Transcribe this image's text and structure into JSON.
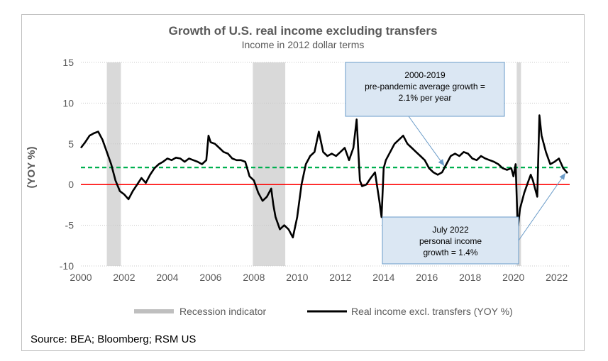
{
  "chart_data": {
    "type": "line",
    "title": "Growth of U.S. real income excluding transfers",
    "subtitle": "Income in 2012 dollar terms",
    "ylabel": "(YOY %)",
    "xlabel": "",
    "xlim": [
      2000,
      2022.6
    ],
    "ylim": [
      -10,
      15
    ],
    "xticks": [
      "2000",
      "2002",
      "2004",
      "2006",
      "2008",
      "2010",
      "2012",
      "2014",
      "2016",
      "2018",
      "2020",
      "2022"
    ],
    "yticks": [
      "15",
      "10",
      "5",
      "0",
      "-5",
      "-10"
    ],
    "grid": "horizontal dotted",
    "legend": "bottom",
    "recessions": [
      {
        "start": 2001.2,
        "end": 2001.85
      },
      {
        "start": 2007.95,
        "end": 2009.45
      },
      {
        "start": 2020.15,
        "end": 2020.35
      }
    ],
    "series": [
      {
        "name": "Real income excl. transfers (YOY %)",
        "color": "#000000",
        "x": [
          2000.0,
          2000.2,
          2000.4,
          2000.6,
          2000.8,
          2001.0,
          2001.2,
          2001.4,
          2001.6,
          2001.8,
          2002.0,
          2002.2,
          2002.4,
          2002.6,
          2002.8,
          2003.0,
          2003.2,
          2003.4,
          2003.6,
          2003.8,
          2004.0,
          2004.2,
          2004.4,
          2004.6,
          2004.8,
          2005.0,
          2005.2,
          2005.4,
          2005.6,
          2005.8,
          2005.9,
          2006.0,
          2006.2,
          2006.4,
          2006.6,
          2006.8,
          2007.0,
          2007.2,
          2007.4,
          2007.6,
          2007.8,
          2008.0,
          2008.2,
          2008.4,
          2008.6,
          2008.8,
          2008.9,
          2009.0,
          2009.2,
          2009.4,
          2009.6,
          2009.8,
          2010.0,
          2010.2,
          2010.4,
          2010.6,
          2010.8,
          2011.0,
          2011.2,
          2011.4,
          2011.6,
          2011.8,
          2012.0,
          2012.2,
          2012.4,
          2012.6,
          2012.75,
          2012.9,
          2013.0,
          2013.2,
          2013.4,
          2013.6,
          2013.8,
          2013.9,
          2014.0,
          2014.1,
          2014.3,
          2014.5,
          2014.7,
          2014.9,
          2015.1,
          2015.3,
          2015.5,
          2015.7,
          2015.9,
          2016.1,
          2016.3,
          2016.5,
          2016.7,
          2016.9,
          2017.1,
          2017.3,
          2017.5,
          2017.7,
          2017.9,
          2018.1,
          2018.3,
          2018.5,
          2018.7,
          2018.9,
          2019.1,
          2019.3,
          2019.5,
          2019.7,
          2019.9,
          2020.0,
          2020.1,
          2020.2,
          2020.3,
          2020.5,
          2020.7,
          2020.8,
          2020.9,
          2021.0,
          2021.1,
          2021.2,
          2021.3,
          2021.5,
          2021.7,
          2021.9,
          2022.1,
          2022.3,
          2022.5
        ],
        "values": [
          4.5,
          5.2,
          6.0,
          6.3,
          6.5,
          5.5,
          4.0,
          2.5,
          0.5,
          -0.8,
          -1.2,
          -1.8,
          -0.8,
          0.0,
          0.8,
          0.2,
          1.2,
          2.0,
          2.5,
          2.8,
          3.2,
          3.0,
          3.3,
          3.2,
          2.8,
          3.2,
          3.0,
          2.8,
          2.5,
          3.0,
          6.0,
          5.2,
          5.0,
          4.5,
          4.0,
          3.8,
          3.2,
          3.0,
          3.0,
          2.8,
          1.0,
          0.5,
          -1.0,
          -2.0,
          -1.5,
          -0.5,
          -2.5,
          -4.0,
          -5.5,
          -5.0,
          -5.5,
          -6.5,
          -4.0,
          0.0,
          2.5,
          3.5,
          4.0,
          6.5,
          4.0,
          3.5,
          3.8,
          3.5,
          4.0,
          4.5,
          3.0,
          4.5,
          8.0,
          0.5,
          -0.2,
          0.0,
          0.8,
          1.5,
          -2.0,
          -4.0,
          2.0,
          3.0,
          4.0,
          5.0,
          5.5,
          6.0,
          5.0,
          4.5,
          4.0,
          3.5,
          3.0,
          2.0,
          1.5,
          1.2,
          1.5,
          2.5,
          3.5,
          3.8,
          3.5,
          4.0,
          3.8,
          3.2,
          3.0,
          3.5,
          3.2,
          3.0,
          2.8,
          2.5,
          2.0,
          1.8,
          2.0,
          1.0,
          2.5,
          -5.5,
          -3.0,
          -1.0,
          0.5,
          1.2,
          0.5,
          -0.5,
          -1.5,
          8.5,
          6.0,
          4.0,
          2.5,
          2.8,
          3.2,
          2.0,
          1.4
        ]
      },
      {
        "name": "2000-2019 pre-pandemic average growth",
        "color": "#00b050",
        "value": 2.1
      }
    ],
    "legend_entries": [
      {
        "label": "Recession indicator",
        "color": "#bfbfbf"
      },
      {
        "label": "Real income excl. transfers (YOY %)",
        "color": "#000000"
      }
    ],
    "annotations": [
      {
        "lines": [
          "2000-2019",
          "pre-pandemic average growth =",
          "2.1% per year"
        ],
        "target_x": 2016.8,
        "target_y": 2.3
      },
      {
        "lines": [
          "July 2022",
          "personal income",
          "growth = 1.4%"
        ],
        "target_x": 2022.4,
        "target_y": 1.4
      }
    ],
    "colors": {
      "zero_line": "#ff0000",
      "avg_line": "#00b050",
      "recession": "#d9d9d9",
      "callout_fill": "#dbe7f3",
      "callout_border": "#6a9bc8",
      "arrow": "#6a9bc8"
    }
  },
  "source": "Source: BEA; Bloomberg; RSM US"
}
